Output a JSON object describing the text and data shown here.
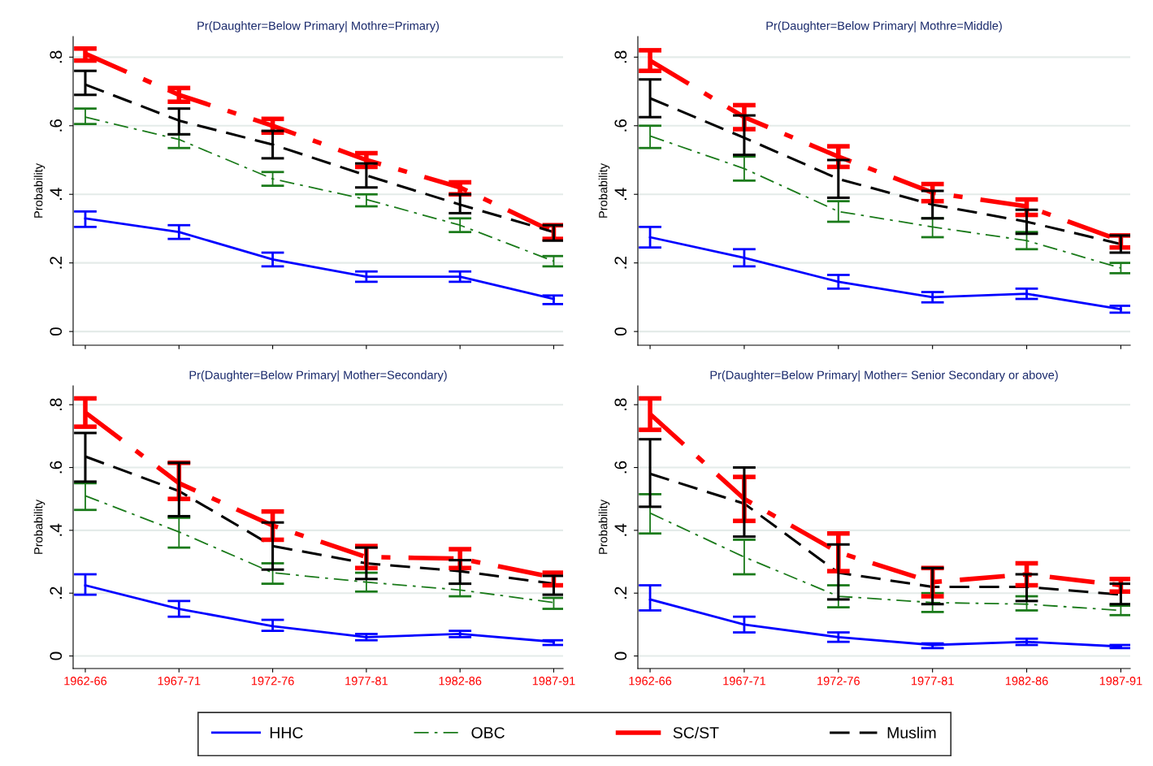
{
  "chart_data": [
    {
      "type": "line",
      "title": "Pr(Daughter=Below Primary| Mothre=Primary)",
      "ylabel": "Probability",
      "categories": [
        "1962-66",
        "1967-71",
        "1972-76",
        "1977-81",
        "1982-86",
        "1987-91"
      ],
      "ylim": [
        -0.04,
        0.86
      ],
      "yticks": [
        {
          "value": 0,
          "label": "0"
        },
        {
          "value": 0.2,
          "label": ".2"
        },
        {
          "value": 0.4,
          "label": ".4"
        },
        {
          "value": 0.6,
          "label": ".6"
        },
        {
          "value": 0.8,
          "label": ".8"
        }
      ],
      "grid": "y",
      "tick_labels": "y",
      "series": [
        {
          "color": "#0000ff",
          "line_style": "solid",
          "values": [
            0.33,
            0.29,
            0.21,
            0.16,
            0.16,
            0.095
          ],
          "errors": [
            [
              0.305,
              0.35
            ],
            [
              0.27,
              0.31
            ],
            [
              0.19,
              0.23
            ],
            [
              0.145,
              0.175
            ],
            [
              0.145,
              0.175
            ],
            [
              0.08,
              0.105
            ]
          ]
        },
        {
          "color": "#1a7a1a",
          "line_style": "dashdot",
          "values": [
            0.625,
            0.56,
            0.445,
            0.385,
            0.31,
            0.205
          ],
          "errors": [
            [
              0.605,
              0.65
            ],
            [
              0.535,
              0.575
            ],
            [
              0.425,
              0.465
            ],
            [
              0.365,
              0.4
            ],
            [
              0.29,
              0.33
            ],
            [
              0.19,
              0.22
            ]
          ]
        },
        {
          "color": "#ff0000",
          "line_style": "dashdot",
          "values": [
            0.81,
            0.69,
            0.6,
            0.5,
            0.42,
            0.29
          ],
          "errors": [
            [
              0.79,
              0.825
            ],
            [
              0.67,
              0.71
            ],
            [
              0.58,
              0.62
            ],
            [
              0.48,
              0.52
            ],
            [
              0.4,
              0.435
            ],
            [
              0.27,
              0.31
            ]
          ]
        },
        {
          "color": "#000000",
          "line_style": "dashed",
          "values": [
            0.72,
            0.615,
            0.545,
            0.455,
            0.37,
            0.29
          ],
          "errors": [
            [
              0.69,
              0.76
            ],
            [
              0.575,
              0.65
            ],
            [
              0.505,
              0.585
            ],
            [
              0.42,
              0.49
            ],
            [
              0.345,
              0.4
            ],
            [
              0.265,
              0.31
            ]
          ]
        }
      ]
    },
    {
      "type": "line",
      "title": "Pr(Daughter=Below Primary| Mothre=Middle)",
      "ylabel": "Probability",
      "categories": [
        "1962-66",
        "1967-71",
        "1972-76",
        "1977-81",
        "1982-86",
        "1987-91"
      ],
      "ylim": [
        -0.04,
        0.86
      ],
      "yticks": [
        {
          "value": 0,
          "label": "0"
        },
        {
          "value": 0.2,
          "label": ".2"
        },
        {
          "value": 0.4,
          "label": ".4"
        },
        {
          "value": 0.6,
          "label": ".6"
        },
        {
          "value": 0.8,
          "label": ".8"
        }
      ],
      "grid": "y",
      "tick_labels": "y",
      "series": [
        {
          "color": "#0000ff",
          "line_style": "solid",
          "values": [
            0.275,
            0.215,
            0.145,
            0.1,
            0.11,
            0.065
          ],
          "errors": [
            [
              0.245,
              0.305
            ],
            [
              0.19,
              0.24
            ],
            [
              0.125,
              0.165
            ],
            [
              0.085,
              0.115
            ],
            [
              0.095,
              0.125
            ],
            [
              0.055,
              0.075
            ]
          ]
        },
        {
          "color": "#1a7a1a",
          "line_style": "dashdot",
          "values": [
            0.57,
            0.475,
            0.35,
            0.305,
            0.265,
            0.185
          ],
          "errors": [
            [
              0.535,
              0.6
            ],
            [
              0.44,
              0.51
            ],
            [
              0.32,
              0.38
            ],
            [
              0.275,
              0.33
            ],
            [
              0.24,
              0.29
            ],
            [
              0.17,
              0.2
            ]
          ]
        },
        {
          "color": "#ff0000",
          "line_style": "dashdot",
          "values": [
            0.79,
            0.625,
            0.51,
            0.405,
            0.365,
            0.265
          ],
          "errors": [
            [
              0.76,
              0.82
            ],
            [
              0.59,
              0.66
            ],
            [
              0.48,
              0.54
            ],
            [
              0.38,
              0.43
            ],
            [
              0.34,
              0.385
            ],
            [
              0.245,
              0.28
            ]
          ]
        },
        {
          "color": "#000000",
          "line_style": "dashed",
          "values": [
            0.68,
            0.565,
            0.445,
            0.37,
            0.32,
            0.255
          ],
          "errors": [
            [
              0.625,
              0.735
            ],
            [
              0.515,
              0.63
            ],
            [
              0.39,
              0.5
            ],
            [
              0.33,
              0.41
            ],
            [
              0.285,
              0.355
            ],
            [
              0.23,
              0.28
            ]
          ]
        }
      ]
    },
    {
      "type": "line",
      "title": "Pr(Daughter=Below Primary| Mother=Secondary)",
      "ylabel": "Probability",
      "categories": [
        "1962-66",
        "1967-71",
        "1972-76",
        "1977-81",
        "1982-86",
        "1987-91"
      ],
      "ylim": [
        -0.04,
        0.86
      ],
      "yticks": [
        {
          "value": 0,
          "label": "0"
        },
        {
          "value": 0.2,
          "label": ".2"
        },
        {
          "value": 0.4,
          "label": ".4"
        },
        {
          "value": 0.6,
          "label": ".6"
        },
        {
          "value": 0.8,
          "label": ".8"
        }
      ],
      "grid": "y",
      "legend": "bottom",
      "series": [
        {
          "name": "HHC",
          "color": "#0000ff",
          "line_style": "solid",
          "values": [
            0.225,
            0.15,
            0.095,
            0.06,
            0.07,
            0.045
          ],
          "errors": [
            [
              0.195,
              0.26
            ],
            [
              0.125,
              0.175
            ],
            [
              0.08,
              0.115
            ],
            [
              0.05,
              0.07
            ],
            [
              0.06,
              0.08
            ],
            [
              0.035,
              0.05
            ]
          ]
        },
        {
          "name": "OBC",
          "color": "#1a7a1a",
          "line_style": "dashdot",
          "values": [
            0.51,
            0.395,
            0.265,
            0.235,
            0.21,
            0.17
          ],
          "errors": [
            [
              0.465,
              0.55
            ],
            [
              0.345,
              0.44
            ],
            [
              0.23,
              0.295
            ],
            [
              0.205,
              0.265
            ],
            [
              0.19,
              0.23
            ],
            [
              0.15,
              0.185
            ]
          ]
        },
        {
          "name": "SC/ST",
          "color": "#ff0000",
          "line_style": "dashdot",
          "values": [
            0.775,
            0.55,
            0.415,
            0.315,
            0.31,
            0.25
          ],
          "errors": [
            [
              0.73,
              0.82
            ],
            [
              0.5,
              0.615
            ],
            [
              0.37,
              0.46
            ],
            [
              0.28,
              0.35
            ],
            [
              0.28,
              0.34
            ],
            [
              0.225,
              0.265
            ]
          ]
        },
        {
          "name": "Muslim",
          "color": "#000000",
          "line_style": "dashed",
          "values": [
            0.635,
            0.525,
            0.35,
            0.295,
            0.27,
            0.23
          ],
          "errors": [
            [
              0.555,
              0.71
            ],
            [
              0.445,
              0.615
            ],
            [
              0.275,
              0.425
            ],
            [
              0.245,
              0.345
            ],
            [
              0.23,
              0.305
            ],
            [
              0.195,
              0.255
            ]
          ]
        }
      ]
    },
    {
      "type": "line",
      "title": "Pr(Daughter=Below Primary| Mother= Senior Secondary or above)",
      "ylabel": "Probability",
      "categories": [
        "1962-66",
        "1967-71",
        "1972-76",
        "1977-81",
        "1982-86",
        "1987-91"
      ],
      "ylim": [
        -0.04,
        0.86
      ],
      "yticks": [
        {
          "value": 0,
          "label": "0"
        },
        {
          "value": 0.2,
          "label": ".2"
        },
        {
          "value": 0.4,
          "label": ".4"
        },
        {
          "value": 0.6,
          "label": ".6"
        },
        {
          "value": 0.8,
          "label": ".8"
        }
      ],
      "grid": "y",
      "series": [
        {
          "color": "#0000ff",
          "line_style": "solid",
          "values": [
            0.18,
            0.1,
            0.06,
            0.035,
            0.045,
            0.03
          ],
          "errors": [
            [
              0.145,
              0.225
            ],
            [
              0.075,
              0.125
            ],
            [
              0.045,
              0.075
            ],
            [
              0.025,
              0.04
            ],
            [
              0.035,
              0.055
            ],
            [
              0.025,
              0.035
            ]
          ]
        },
        {
          "color": "#1a7a1a",
          "line_style": "dashdot",
          "values": [
            0.455,
            0.315,
            0.19,
            0.17,
            0.165,
            0.145
          ],
          "errors": [
            [
              0.39,
              0.515
            ],
            [
              0.26,
              0.37
            ],
            [
              0.155,
              0.225
            ],
            [
              0.14,
              0.2
            ],
            [
              0.145,
              0.19
            ],
            [
              0.13,
              0.16
            ]
          ]
        },
        {
          "color": "#ff0000",
          "line_style": "dashdot",
          "values": [
            0.77,
            0.5,
            0.33,
            0.235,
            0.26,
            0.225
          ],
          "errors": [
            [
              0.72,
              0.82
            ],
            [
              0.43,
              0.57
            ],
            [
              0.27,
              0.39
            ],
            [
              0.19,
              0.28
            ],
            [
              0.225,
              0.295
            ],
            [
              0.205,
              0.245
            ]
          ]
        },
        {
          "color": "#000000",
          "line_style": "dashed",
          "values": [
            0.58,
            0.485,
            0.265,
            0.22,
            0.22,
            0.195
          ],
          "errors": [
            [
              0.475,
              0.69
            ],
            [
              0.38,
              0.6
            ],
            [
              0.18,
              0.355
            ],
            [
              0.165,
              0.28
            ],
            [
              0.175,
              0.26
            ],
            [
              0.165,
              0.23
            ]
          ]
        }
      ]
    }
  ]
}
